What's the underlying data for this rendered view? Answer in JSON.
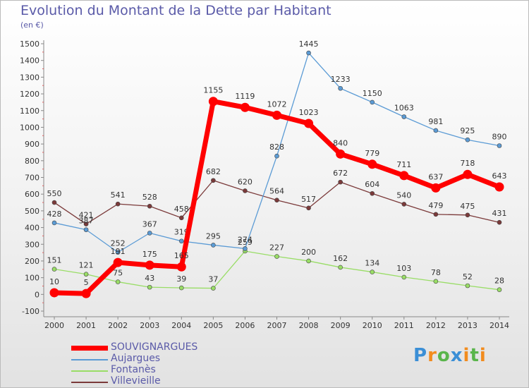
{
  "chart_data": {
    "type": "line",
    "title": "Evolution du Montant de la Dette par Habitant",
    "subtitle": "(en €)",
    "x": [
      "2000",
      "2001",
      "2002",
      "2003",
      "2004",
      "2005",
      "2006",
      "2007",
      "2008",
      "2009",
      "2010",
      "2011",
      "2012",
      "2013",
      "2014"
    ],
    "ylim": [
      -100,
      1500
    ],
    "yticks": [
      -100,
      0,
      100,
      200,
      300,
      400,
      500,
      600,
      700,
      800,
      900,
      1000,
      1100,
      1200,
      1300,
      1400,
      1500
    ],
    "grid": false,
    "legend_position": "bottom-left",
    "series": [
      {
        "name": "SOUVIGNARGUES",
        "color": "#ff0000",
        "values": [
          10,
          5,
          191,
          175,
          165,
          1155,
          1119,
          1072,
          1023,
          840,
          779,
          711,
          637,
          718,
          643
        ]
      },
      {
        "name": "Aujargues",
        "color": "#5b9bd5",
        "values": [
          428,
          387,
          252,
          367,
          319,
          295,
          274,
          828,
          1445,
          1233,
          1150,
          1063,
          981,
          925,
          890
        ]
      },
      {
        "name": "Fontanès",
        "color": "#99dd66",
        "values": [
          151,
          121,
          75,
          43,
          39,
          37,
          259,
          227,
          200,
          162,
          134,
          103,
          78,
          52,
          28
        ]
      },
      {
        "name": "Villevieille",
        "color": "#7b3a3a",
        "values": [
          550,
          421,
          541,
          528,
          458,
          682,
          620,
          564,
          517,
          672,
          604,
          540,
          479,
          475,
          431
        ]
      }
    ]
  },
  "logo": {
    "text": "Proxiti",
    "letters": [
      "P",
      "r",
      "o",
      "x",
      "i",
      "t",
      "i"
    ]
  }
}
